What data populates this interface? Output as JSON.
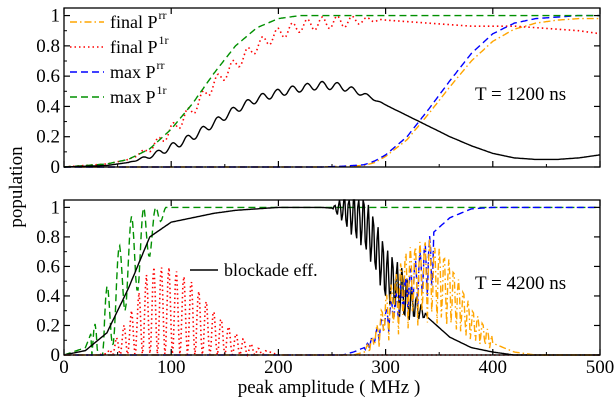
{
  "chart_data": [
    {
      "type": "line",
      "panel": "top",
      "annotation": "T = 1200 ns",
      "xlim": [
        0,
        500
      ],
      "ylim": [
        0,
        1.05
      ],
      "xticks": [
        0,
        100,
        200,
        300,
        400,
        500
      ],
      "yticks": [
        0,
        0.2,
        0.4,
        0.6,
        0.8,
        1
      ],
      "ytick_labels": [
        "0",
        "0.2",
        "0.4",
        "0.6",
        "0.8",
        "1"
      ],
      "legend_position": "top-left",
      "series": [
        {
          "name": "final P",
          "sup": "rr",
          "color": "#ffa500",
          "style": "dash-dot",
          "x": [
            0,
            40,
            60,
            80,
            100,
            120,
            140,
            160,
            180,
            200,
            240,
            260,
            280,
            290,
            300,
            320,
            340,
            360,
            380,
            400,
            420,
            440,
            460,
            480,
            500
          ],
          "y": [
            0,
            0,
            0,
            0,
            0,
            0,
            0,
            0,
            0,
            0,
            0,
            0.005,
            0.01,
            0.03,
            0.07,
            0.18,
            0.35,
            0.53,
            0.7,
            0.83,
            0.91,
            0.95,
            0.97,
            0.98,
            0.98
          ]
        },
        {
          "name": "final P",
          "sup": "1r",
          "color": "#ff0000",
          "style": "dotted",
          "wiggle": true,
          "x": [
            0,
            40,
            60,
            80,
            100,
            120,
            140,
            160,
            180,
            200,
            220,
            240,
            260,
            280,
            300,
            320,
            340,
            360,
            380,
            400,
            420,
            440,
            460,
            480,
            500
          ],
          "y": [
            0,
            0.02,
            0.05,
            0.12,
            0.24,
            0.38,
            0.55,
            0.68,
            0.8,
            0.88,
            0.93,
            0.95,
            0.96,
            0.97,
            0.97,
            0.96,
            0.95,
            0.94,
            0.93,
            0.93,
            0.93,
            0.92,
            0.91,
            0.9,
            0.88
          ]
        },
        {
          "name": "max P",
          "sup": "rr",
          "color": "#0000ff",
          "style": "dashed",
          "x": [
            0,
            40,
            60,
            80,
            100,
            120,
            140,
            160,
            180,
            200,
            240,
            260,
            280,
            290,
            300,
            320,
            340,
            360,
            380,
            400,
            420,
            440,
            460,
            480,
            500
          ],
          "y": [
            0,
            0,
            0,
            0,
            0,
            0,
            0,
            0,
            0,
            0,
            0,
            0.005,
            0.015,
            0.04,
            0.08,
            0.2,
            0.38,
            0.57,
            0.75,
            0.88,
            0.95,
            0.98,
            0.99,
            1.0,
            1.0
          ]
        },
        {
          "name": "max P",
          "sup": "1r",
          "color": "#009000",
          "style": "dashed",
          "x": [
            0,
            40,
            60,
            80,
            100,
            120,
            140,
            160,
            180,
            200,
            220,
            240,
            260,
            500
          ],
          "y": [
            0,
            0.02,
            0.05,
            0.12,
            0.25,
            0.42,
            0.62,
            0.8,
            0.92,
            0.98,
            1.0,
            1.0,
            1.0,
            1.0
          ]
        },
        {
          "name": "",
          "color": "#000000",
          "style": "solid",
          "wiggle": true,
          "x": [
            0,
            40,
            60,
            80,
            100,
            120,
            140,
            160,
            180,
            200,
            220,
            240,
            260,
            280,
            300,
            320,
            340,
            360,
            380,
            400,
            420,
            440,
            460,
            480,
            500
          ],
          "y": [
            0,
            0.01,
            0.03,
            0.07,
            0.13,
            0.2,
            0.29,
            0.38,
            0.45,
            0.49,
            0.52,
            0.54,
            0.53,
            0.48,
            0.41,
            0.34,
            0.27,
            0.2,
            0.14,
            0.09,
            0.06,
            0.05,
            0.05,
            0.06,
            0.08
          ]
        }
      ]
    },
    {
      "type": "line",
      "panel": "bottom",
      "annotation": "T = 4200 ns",
      "xlabel": "peak amplitude ( MHz )",
      "xlim": [
        0,
        500
      ],
      "ylim": [
        0,
        1.05
      ],
      "xticks": [
        0,
        100,
        200,
        300,
        400,
        500
      ],
      "yticks": [
        0,
        0.2,
        0.4,
        0.6,
        0.8,
        1
      ],
      "ytick_labels": [
        "0",
        "0.2",
        "0.4",
        "0.6",
        "0.8",
        "1"
      ],
      "legend": [
        {
          "name": "blockade eff.",
          "color": "#000000",
          "style": "solid"
        }
      ],
      "series": [
        {
          "name": "",
          "color": "#009000",
          "style": "dashed",
          "osc": "lowcomb",
          "x": [
            0,
            20,
            35,
            45,
            55,
            65,
            75,
            85,
            100,
            500
          ],
          "y": [
            0,
            0.05,
            0.33,
            0.6,
            0.82,
            0.97,
            1.0,
            1.0,
            1.0,
            1.0
          ]
        },
        {
          "name": "",
          "color": "#ff0000",
          "style": "dotted",
          "osc": "redcomb",
          "x": [
            0,
            30,
            40,
            60,
            80,
            100,
            120,
            140,
            160,
            180,
            200
          ],
          "y": [
            0,
            0,
            0.01,
            0.25,
            0.6,
            0.6,
            0.5,
            0.3,
            0.15,
            0.05,
            0
          ]
        },
        {
          "name": "",
          "color": "#000000",
          "style": "solid",
          "osc": "blackcomb",
          "x": [
            0,
            20,
            40,
            60,
            80,
            100,
            120,
            140,
            160,
            180,
            200,
            240,
            260,
            270,
            280,
            290,
            300,
            320,
            340,
            360,
            380,
            400,
            420,
            440,
            460,
            480,
            500
          ],
          "y": [
            0,
            0.03,
            0.15,
            0.45,
            0.8,
            0.9,
            0.93,
            0.96,
            0.98,
            0.99,
            1.0,
            1.0,
            0.99,
            0.97,
            0.9,
            0.75,
            0.55,
            0.38,
            0.25,
            0.12,
            0.05,
            0.02,
            0.0,
            0.0,
            0.0,
            0.0,
            0.0
          ]
        },
        {
          "name": "",
          "color": "#0000ff",
          "style": "dashed",
          "osc": "bluecomb",
          "x": [
            0,
            260,
            270,
            280,
            290,
            300,
            320,
            340,
            360,
            380,
            400,
            420,
            500
          ],
          "y": [
            0,
            0,
            0.02,
            0.05,
            0.15,
            0.3,
            0.55,
            0.8,
            0.93,
            0.99,
            1.0,
            1.0,
            1.0
          ]
        },
        {
          "name": "",
          "color": "#ffa500",
          "style": "dash-dot",
          "osc": "orangecomb",
          "x": [
            0,
            270,
            280,
            290,
            300,
            320,
            340,
            360,
            380,
            400,
            420,
            440,
            500
          ],
          "y": [
            0,
            0,
            0.02,
            0.1,
            0.25,
            0.45,
            0.5,
            0.4,
            0.2,
            0.08,
            0.02,
            0,
            0
          ]
        }
      ]
    }
  ],
  "shared": {
    "ylabel": "population",
    "xtick_labels": [
      "0",
      "100",
      "200",
      "300",
      "400",
      "500"
    ]
  }
}
